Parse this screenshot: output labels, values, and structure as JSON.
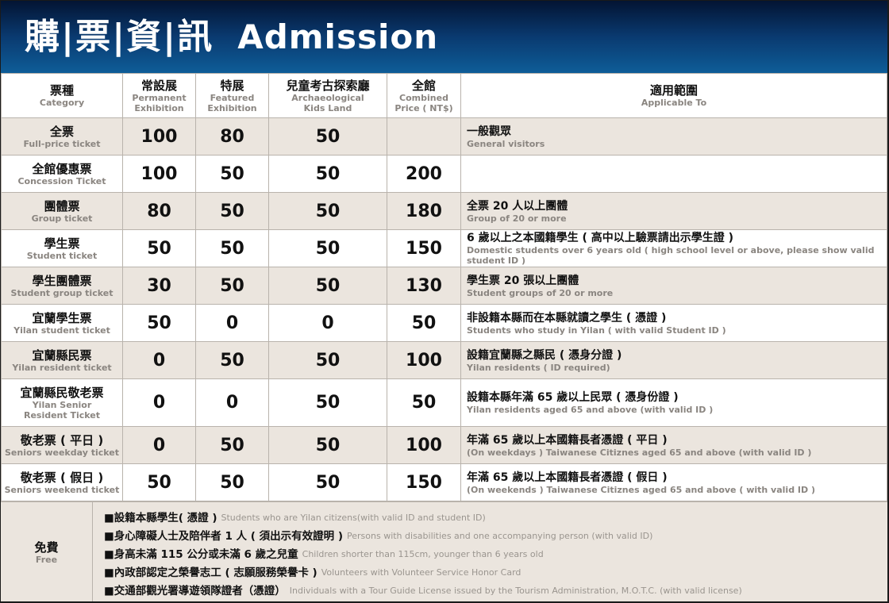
{
  "title": {
    "zh": "購|票|資|訊",
    "en": "Admission"
  },
  "headers": [
    {
      "zh": "票種",
      "en": "Category"
    },
    {
      "zh": "常設展",
      "en": "Permanent\nExhibition"
    },
    {
      "zh": "特展",
      "en": "Featured\nExhibition"
    },
    {
      "zh": "兒童考古探索廳",
      "en": "Archaeological\nKids Land"
    },
    {
      "zh": "全館",
      "en": "Combined\nPrice ( NT$)"
    },
    {
      "zh": "適用範圍",
      "en": "Applicable To"
    }
  ],
  "rows": [
    {
      "zh": "全票",
      "en": "Full-price ticket",
      "p": [
        "100",
        "80",
        "50",
        ""
      ],
      "az": "一般觀眾",
      "ae": "General visitors"
    },
    {
      "zh": "全館優惠票",
      "en": "Concession Ticket",
      "p": [
        "100",
        "50",
        "50",
        "200"
      ],
      "az": "",
      "ae": ""
    },
    {
      "zh": "團體票",
      "en": "Group ticket",
      "p": [
        "80",
        "50",
        "50",
        "180"
      ],
      "az": "全票 20 人以上團體",
      "ae": "Group of 20 or more"
    },
    {
      "zh": "學生票",
      "en": "Student ticket",
      "p": [
        "50",
        "50",
        "50",
        "150"
      ],
      "az": "6 歲以上之本國籍學生 ( 高中以上驗票請出示學生證 )",
      "ae": "Domestic students over 6 years old ( high school level or above, please show valid student ID )"
    },
    {
      "zh": "學生團體票",
      "en": "Student group ticket",
      "p": [
        "30",
        "50",
        "50",
        "130"
      ],
      "az": "學生票 20 張以上團體",
      "ae": "Student groups of 20 or more"
    },
    {
      "zh": "宜蘭學生票",
      "en": "Yilan student ticket",
      "p": [
        "50",
        "0",
        "0",
        "50"
      ],
      "az": "非設籍本縣而在本縣就讀之學生 ( 憑證 )",
      "ae": "Students who study in Yilan ( with valid Student ID )"
    },
    {
      "zh": "宜蘭縣民票",
      "en": "Yilan resident ticket",
      "p": [
        "0",
        "50",
        "50",
        "100"
      ],
      "az": "設籍宜蘭縣之縣民 ( 憑身分證 )",
      "ae": "Yilan residents ( ID required)"
    },
    {
      "zh": "宜蘭縣民敬老票",
      "en": "Yilan Senior\nResident Ticket",
      "p": [
        "0",
        "0",
        "50",
        "50"
      ],
      "az": "設籍本縣年滿 65 歲以上民眾 ( 憑身份證 )",
      "ae": "Yilan residents aged 65 and above (with valid ID )"
    },
    {
      "zh": "敬老票 ( 平日 )",
      "en": "Seniors weekday ticket",
      "p": [
        "0",
        "50",
        "50",
        "100"
      ],
      "az": "年滿 65 歲以上本國籍長者憑證 ( 平日 )",
      "ae": "(On weekdays ) Taiwanese Citiznes aged 65 and above (with valid ID )"
    },
    {
      "zh": "敬老票 ( 假日 )",
      "en": "Seniors weekend ticket",
      "p": [
        "50",
        "50",
        "50",
        "150"
      ],
      "az": "年滿 65 歲以上本國籍長者憑證 ( 假日 )",
      "ae": "(On weekends ) Taiwanese Citiznes aged 65 and above ( with valid ID )"
    }
  ],
  "free": {
    "zh": "免費",
    "en": "Free",
    "items": [
      {
        "zh": "■設籍本縣學生( 憑證 )",
        "en": "Students who are Yilan citizens(with valid ID and student ID)"
      },
      {
        "zh": "■身心障礙人士及陪伴者 1 人 ( 須出示有效證明 )",
        "en": "Persons with disabilities and one accompanying person (with valid ID)"
      },
      {
        "zh": "■身高未滿 115 公分或未滿 6 歲之兒童",
        "en": "Children shorter than 115cm, younger than 6 years old"
      },
      {
        "zh": "■內政部認定之榮譽志工 ( 志願服務榮譽卡 )",
        "en": "Volunteers with Volunteer Service Honor Card"
      },
      {
        "zh": "■交通部觀光署導遊領隊證者（憑證）",
        "en": "Individuals with a Tour Guide License issued by the Tourism Administration, M.O.T.C. (with valid license)"
      }
    ]
  }
}
